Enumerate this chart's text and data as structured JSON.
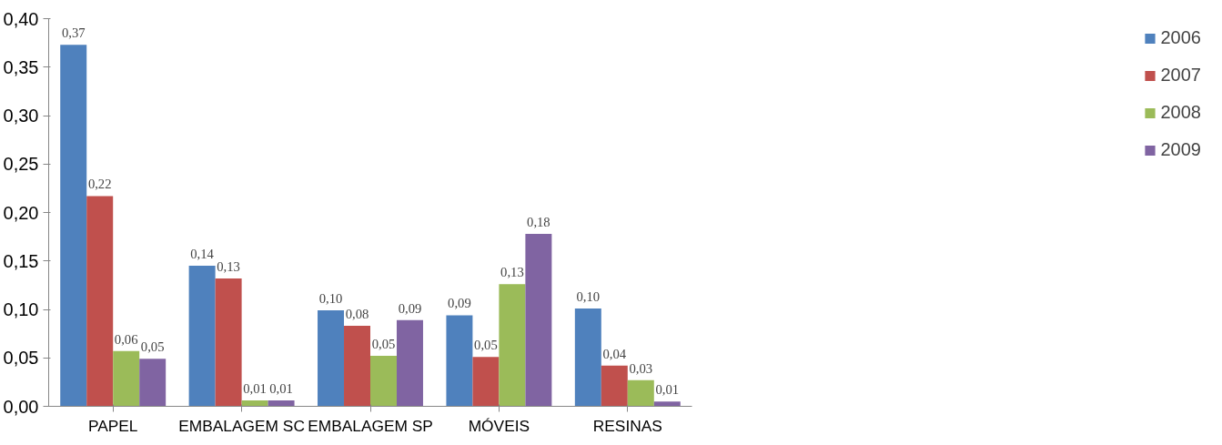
{
  "chart_data": {
    "type": "bar",
    "categories": [
      "PAPEL",
      "EMBALAGEM SC",
      "EMBALAGEM SP",
      "MÓVEIS",
      "RESINAS"
    ],
    "series": [
      {
        "name": "2006",
        "color": "#4f81bd",
        "values": [
          0.373,
          0.145,
          0.099,
          0.094,
          0.101
        ],
        "value_labels": [
          "0,37",
          "0,14",
          "0,10",
          "0,09",
          "0,10"
        ]
      },
      {
        "name": "2007",
        "color": "#c0504d",
        "values": [
          0.217,
          0.132,
          0.083,
          0.051,
          0.042
        ],
        "value_labels": [
          "0,22",
          "0,13",
          "0,08",
          "0,05",
          "0,04"
        ]
      },
      {
        "name": "2008",
        "color": "#9bbb59",
        "values": [
          0.057,
          0.006,
          0.052,
          0.126,
          0.027
        ],
        "value_labels": [
          "0,06",
          "0,01",
          "0,05",
          "0,13",
          "0,03"
        ]
      },
      {
        "name": "2009",
        "color": "#8064a2",
        "values": [
          0.049,
          0.006,
          0.089,
          0.178,
          0.005
        ],
        "value_labels": [
          "0,05",
          "0,01",
          "0,09",
          "0,18",
          "0,01"
        ]
      }
    ],
    "ylim": [
      0,
      0.4
    ],
    "yticks": [
      {
        "value": 0,
        "label": "0,00"
      },
      {
        "value": 0.05,
        "label": "0,05"
      },
      {
        "value": 0.1,
        "label": "0,10"
      },
      {
        "value": 0.15,
        "label": "0,15"
      },
      {
        "value": 0.2,
        "label": "0,20"
      },
      {
        "value": 0.25,
        "label": "0,25"
      },
      {
        "value": 0.3,
        "label": "0,30"
      },
      {
        "value": 0.35,
        "label": "0,35"
      },
      {
        "value": 0.4,
        "label": "0,40"
      }
    ],
    "grid": false,
    "legend": "right"
  }
}
